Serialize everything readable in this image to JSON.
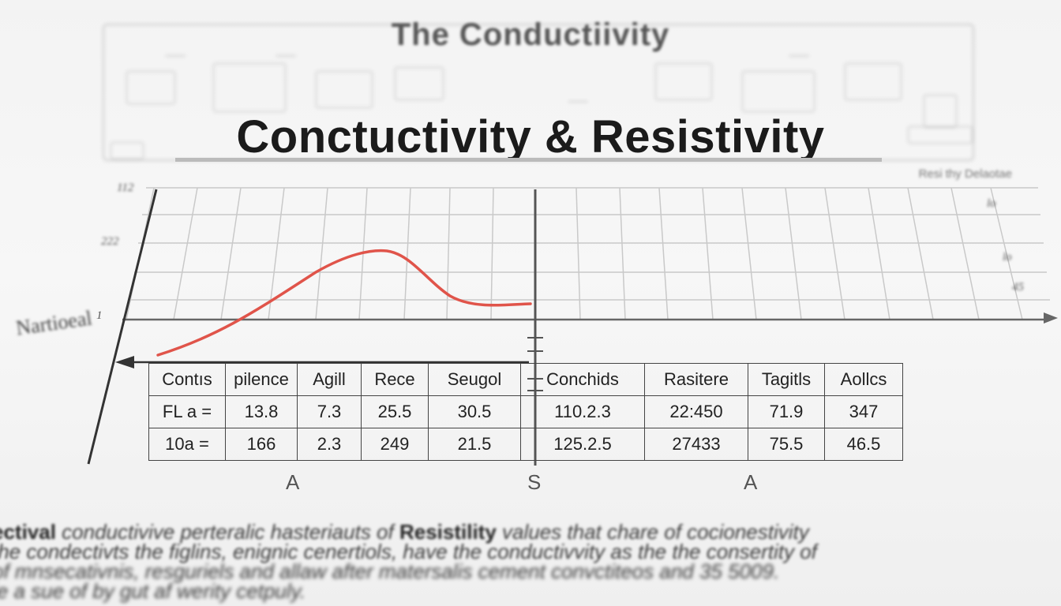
{
  "titles": {
    "top": "The Conductiivity",
    "main": "Conctuctivity & Resistivity",
    "note": "Resi thy Delaotae"
  },
  "axis": {
    "side_label": "Nartioeal",
    "y_ticks": [
      "112",
      "222",
      "1"
    ],
    "right_ticks": [
      "lo",
      "lo",
      "45"
    ],
    "bottom_letters": [
      "A",
      "S",
      "A"
    ]
  },
  "table": {
    "headers": [
      "Contıs",
      "pilence",
      "Agill",
      "Rece",
      "Seugol",
      "Conchids",
      "Rasitere",
      "Tagitls",
      "Aollcs"
    ],
    "rows": [
      [
        "FL a =",
        "13.8",
        "7.3",
        "25.5",
        "30.5",
        "110.2.3",
        "22:450",
        "71.9",
        "347"
      ],
      [
        "10a =",
        "166",
        "2.3",
        "249",
        "21.5",
        "125.2.5",
        "27433",
        "75.5",
        "46.5"
      ]
    ]
  },
  "paragraph": {
    "line1_a": "ectival",
    "line1_b": " conductivive perteralic hasteriauts of ",
    "line1_c": "Resistility",
    "line1_d": " values that chare of cocionestivity",
    "line2": "the condectivts the figlins, enignic cenertiols, have the conductivvity as the the consertity of",
    "line3": "of mnsecativnis, resguriels and allaw after matersalis cement convctiteos and 35 5009.",
    "line4": "le a sue of by gut af werity cetpuly."
  },
  "curve_color": "#e0544a"
}
